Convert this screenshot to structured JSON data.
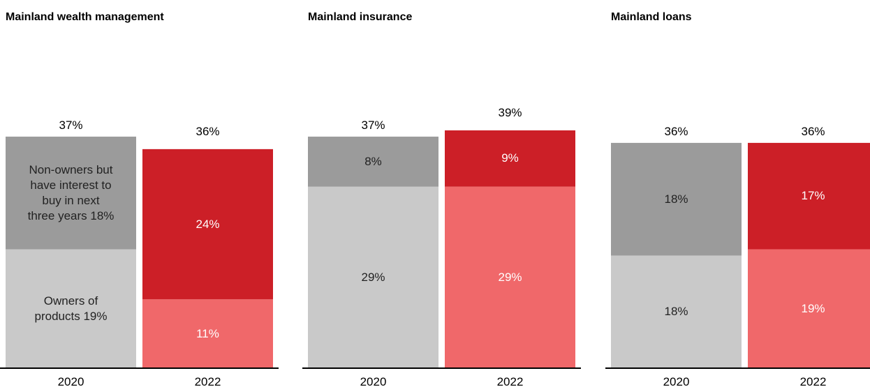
{
  "chart_data": [
    {
      "type": "bar",
      "stacked": true,
      "title": "Mainland wealth management",
      "categories": [
        "2020",
        "2022"
      ],
      "ylim": [
        0,
        40
      ],
      "totals": [
        37,
        36
      ],
      "total_labels": [
        "37%",
        "36%"
      ],
      "series": [
        {
          "colors": [
            "#c9c9c9",
            "#f0686a"
          ],
          "values": [
            19,
            11
          ],
          "value_labels": [
            "Owners of products 19%",
            "11%"
          ]
        },
        {
          "colors": [
            "#9b9b9b",
            "#cc1f27"
          ],
          "values": [
            18,
            24
          ],
          "value_labels": [
            "Non-owners but have interest to buy in next three years 18%",
            "24%"
          ]
        }
      ]
    },
    {
      "type": "bar",
      "stacked": true,
      "title": "Mainland insurance",
      "categories": [
        "2020",
        "2022"
      ],
      "ylim": [
        0,
        40
      ],
      "totals": [
        37,
        39
      ],
      "total_labels": [
        "37%",
        "39%"
      ],
      "series": [
        {
          "colors": [
            "#c9c9c9",
            "#f0686a"
          ],
          "values": [
            29,
            29
          ],
          "value_labels": [
            "29%",
            "29%"
          ]
        },
        {
          "colors": [
            "#9b9b9b",
            "#cc1f27"
          ],
          "values": [
            8,
            9
          ],
          "value_labels": [
            "8%",
            "9%"
          ]
        }
      ]
    },
    {
      "type": "bar",
      "stacked": true,
      "title": "Mainland loans",
      "categories": [
        "2020",
        "2022"
      ],
      "ylim": [
        0,
        40
      ],
      "totals": [
        36,
        36
      ],
      "total_labels": [
        "36%",
        "36%"
      ],
      "series": [
        {
          "colors": [
            "#c9c9c9",
            "#f0686a"
          ],
          "values": [
            18,
            19
          ],
          "value_labels": [
            "18%",
            "19%"
          ]
        },
        {
          "colors": [
            "#9b9b9b",
            "#cc1f27"
          ],
          "values": [
            18,
            17
          ],
          "value_labels": [
            "18%",
            "17%"
          ]
        }
      ]
    }
  ]
}
